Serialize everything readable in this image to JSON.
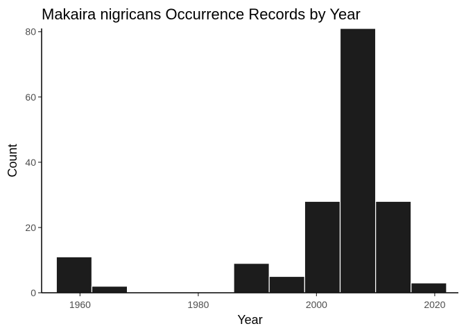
{
  "chart_data": {
    "type": "bar",
    "title": "Makaira nigricans Occurrence Records by Year",
    "xlabel": "Year",
    "ylabel": "Count",
    "bins": [
      {
        "start": 1956,
        "end": 1962,
        "count": 11
      },
      {
        "start": 1962,
        "end": 1968,
        "count": 2
      },
      {
        "start": 1968,
        "end": 1974,
        "count": 0
      },
      {
        "start": 1974,
        "end": 1980,
        "count": 0
      },
      {
        "start": 1980,
        "end": 1986,
        "count": 0
      },
      {
        "start": 1986,
        "end": 1992,
        "count": 9
      },
      {
        "start": 1992,
        "end": 1998,
        "count": 5
      },
      {
        "start": 1998,
        "end": 2004,
        "count": 28
      },
      {
        "start": 2004,
        "end": 2010,
        "count": 81
      },
      {
        "start": 2010,
        "end": 2016,
        "count": 28
      },
      {
        "start": 2016,
        "end": 2022,
        "count": 3
      }
    ],
    "xlim": [
      1953.5,
      2024
    ],
    "ylim": [
      0,
      81
    ],
    "xticks": [
      1960,
      1980,
      2000,
      2020
    ],
    "yticks": [
      0,
      20,
      40,
      60,
      80
    ],
    "bar_color": "#1c1c1c",
    "bar_outline": "#ffffff",
    "grid": false,
    "legend": "none"
  }
}
